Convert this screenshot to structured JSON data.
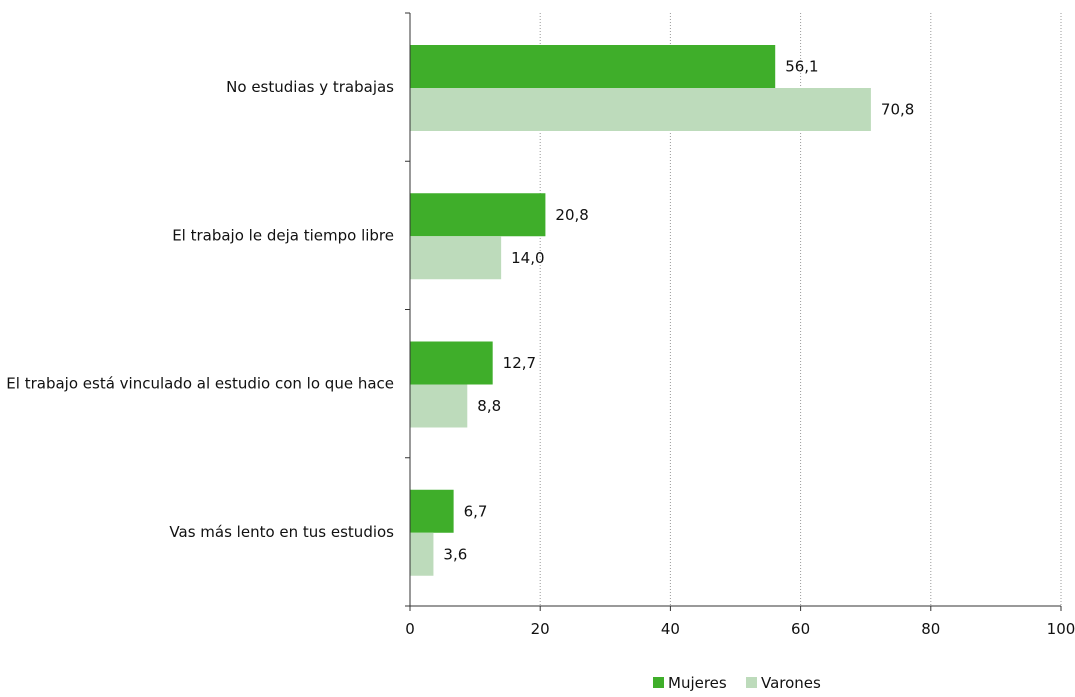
{
  "chart_data": {
    "type": "bar",
    "orientation": "horizontal",
    "categories": [
      "No estudias y trabajas",
      "El trabajo le deja tiempo libre",
      "El trabajo está vinculado al estudio con lo que hace",
      "Vas más lento en tus estudios"
    ],
    "series": [
      {
        "name": "Mujeres",
        "color": "#3fae2a",
        "values": [
          56.1,
          20.8,
          12.7,
          6.7
        ],
        "labels": [
          "56,1",
          "20,8",
          "12,7",
          "6,7"
        ]
      },
      {
        "name": "Varones",
        "color": "#bddbbb",
        "values": [
          70.8,
          14.0,
          8.8,
          3.6
        ],
        "labels": [
          "70,8",
          "14,0",
          "8,8",
          "3,6"
        ]
      }
    ],
    "xlim": [
      0,
      100
    ],
    "xticks": [
      0,
      20,
      40,
      60,
      80,
      100
    ],
    "grid": "vertical-dotted",
    "legend_position": "bottom-right"
  }
}
